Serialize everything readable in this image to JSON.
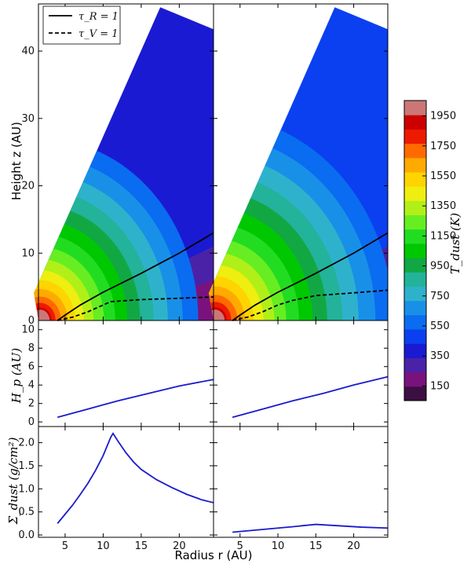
{
  "chart_data": [
    {
      "id": "temperature-contours",
      "type": "heatmap",
      "panels": [
        "left",
        "right"
      ],
      "ylabel": "Height z (AU)",
      "ylim": [
        0,
        47
      ],
      "xlim": [
        1.5,
        24.5
      ],
      "yticks": [
        0,
        10,
        20,
        30,
        40
      ],
      "disk_edge": {
        "x": [
          4,
          17.5
        ],
        "z_top": 46.5
      },
      "temperature_levels": [
        150,
        250,
        350,
        450,
        550,
        650,
        750,
        850,
        950,
        1050,
        1150,
        1250,
        1350,
        1450,
        1550,
        1650,
        1750,
        1850,
        1950,
        2050
      ],
      "legend": {
        "position": "top-left",
        "entries": [
          "τ_R = 1",
          "τ_V = 1"
        ]
      },
      "tau_R": {
        "left": {
          "x": [
            4,
            5,
            7,
            10,
            15,
            20,
            24.5
          ],
          "z": [
            0,
            0.8,
            2.3,
            4.2,
            7,
            10,
            13
          ]
        },
        "right": {
          "x": [
            4,
            5,
            7,
            10,
            15,
            20,
            24.5
          ],
          "z": [
            0,
            0.8,
            2.3,
            4.2,
            7,
            10,
            13
          ]
        }
      },
      "tau_V": {
        "left": {
          "x": [
            4,
            6,
            8,
            10,
            11,
            15,
            20,
            24.5
          ],
          "z": [
            0,
            0.5,
            1.3,
            2.3,
            2.8,
            3.1,
            3.3,
            3.5
          ]
        },
        "right": {
          "x": [
            4,
            6,
            8,
            10,
            12,
            15,
            20,
            24.5
          ],
          "z": [
            0,
            0.5,
            1.3,
            2.3,
            3.0,
            3.7,
            4.1,
            4.5
          ]
        }
      }
    },
    {
      "id": "scale-height",
      "type": "line",
      "ylabel": "H_p (AU)",
      "ylim": [
        -0.5,
        11
      ],
      "yticks": [
        0,
        2,
        4,
        6,
        8,
        10
      ],
      "series": [
        {
          "panel": "left",
          "x": [
            4,
            8,
            12,
            16,
            20,
            24.5
          ],
          "y": [
            0.5,
            1.4,
            2.3,
            3.1,
            3.9,
            4.6
          ]
        },
        {
          "panel": "right",
          "x": [
            4,
            8,
            12,
            16,
            20,
            24.5
          ],
          "y": [
            0.5,
            1.4,
            2.3,
            3.1,
            4.0,
            4.9
          ]
        }
      ]
    },
    {
      "id": "surface-density",
      "type": "line",
      "ylabel": "Σ_dust (g/cm²)",
      "xlabel": "Radius r (AU)",
      "ylim": [
        -0.05,
        2.35
      ],
      "yticks": [
        0.0,
        0.5,
        1.0,
        1.5,
        2.0
      ],
      "xticks": [
        5,
        10,
        15,
        20
      ],
      "series": [
        {
          "panel": "left",
          "x": [
            4,
            5,
            6,
            7,
            8,
            9,
            10,
            10.5,
            11,
            11.3,
            12,
            13,
            14,
            15,
            17,
            19,
            21,
            23,
            24.5
          ],
          "y": [
            0.25,
            0.45,
            0.65,
            0.88,
            1.12,
            1.4,
            1.72,
            1.92,
            2.12,
            2.2,
            2.02,
            1.78,
            1.58,
            1.42,
            1.2,
            1.03,
            0.88,
            0.76,
            0.7
          ]
        },
        {
          "panel": "right",
          "x": [
            4,
            8,
            12,
            15,
            18,
            21,
            24.5
          ],
          "y": [
            0.06,
            0.12,
            0.18,
            0.23,
            0.2,
            0.17,
            0.15
          ]
        }
      ]
    }
  ],
  "colorbar": {
    "label": "T_dust (K)",
    "tick_labels": [
      "1950",
      "1750",
      "1550",
      "1350",
      "1150",
      "950",
      "750",
      "550",
      "350",
      "150"
    ],
    "colors": [
      "#3b0f42",
      "#7a127e",
      "#4a22a8",
      "#1a1ad2",
      "#0a40f0",
      "#0a6cf0",
      "#1890e8",
      "#2eb2cc",
      "#22b39a",
      "#11a844",
      "#00c800",
      "#22dc22",
      "#66ee22",
      "#b0f018",
      "#eeee10",
      "#ffd400",
      "#ffaa00",
      "#ff6a00",
      "#ee1a00",
      "#cc0000",
      "#cc7777"
    ]
  }
}
